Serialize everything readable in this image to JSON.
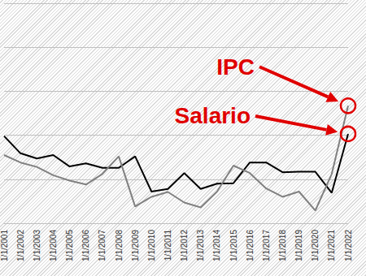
{
  "chart_data": {
    "type": "line",
    "categories": [
      "1/1/2001",
      "1/1/2002",
      "1/1/2003",
      "1/1/2004",
      "1/1/2005",
      "1/1/2006",
      "1/1/2007",
      "1/1/2008",
      "1/1/2009",
      "1/1/2010",
      "1/1/2011",
      "1/1/2012",
      "1/1/2013",
      "1/1/2014",
      "1/1/2015",
      "1/1/2016",
      "1/1/2017",
      "1/1/2018",
      "1/1/2019",
      "1/1/2020",
      "1/1/2021",
      "1/1/2022"
    ],
    "series": [
      {
        "name": "Salario",
        "color": "#000000",
        "values": [
          1.98,
          1.59,
          1.47,
          1.55,
          1.29,
          1.36,
          1.26,
          1.26,
          1.52,
          0.72,
          0.78,
          1.14,
          0.78,
          0.9,
          0.91,
          1.38,
          1.38,
          1.16,
          1.17,
          1.17,
          0.69,
          2.03
        ]
      },
      {
        "name": "IPC",
        "color": "#808080",
        "values": [
          1.55,
          1.38,
          1.28,
          1.09,
          0.97,
          0.88,
          1.12,
          1.52,
          0.38,
          0.6,
          0.71,
          0.47,
          0.36,
          0.72,
          1.31,
          1.14,
          0.79,
          0.6,
          0.72,
          0.29,
          1.12,
          2.67
        ]
      }
    ],
    "annotations": [
      {
        "text": "IPC",
        "series": "IPC"
      },
      {
        "text": "Salario",
        "series": "Salario"
      }
    ],
    "ylim": [
      0,
      5
    ],
    "yticks": [
      0,
      1,
      2,
      3,
      4,
      5
    ],
    "grid": true,
    "tick_labels": "x"
  }
}
